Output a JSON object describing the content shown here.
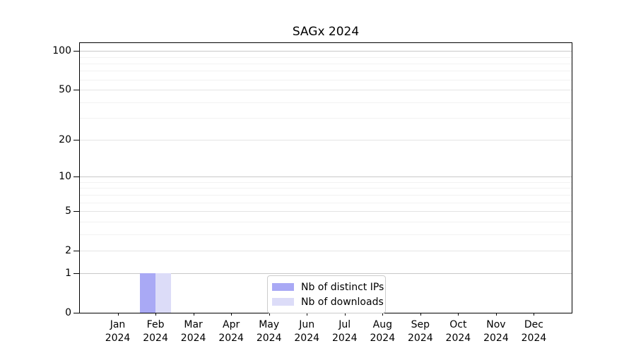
{
  "chart_data": {
    "type": "bar",
    "title": "SAGx 2024",
    "categories": [
      "Jan\n2024",
      "Feb\n2024",
      "Mar\n2024",
      "Apr\n2024",
      "May\n2024",
      "Jun\n2024",
      "Jul\n2024",
      "Aug\n2024",
      "Sep\n2024",
      "Oct\n2024",
      "Nov\n2024",
      "Dec\n2024"
    ],
    "series": [
      {
        "name": "Nb of distinct IPs",
        "color": "#a9a9f5",
        "values": [
          0,
          1,
          0,
          0,
          0,
          0,
          0,
          0,
          0,
          0,
          0,
          0
        ]
      },
      {
        "name": "Nb of downloads",
        "color": "#dcdcf8",
        "values": [
          0,
          1,
          0,
          0,
          0,
          0,
          0,
          0,
          0,
          0,
          0,
          0
        ]
      }
    ],
    "xlabel": "",
    "ylabel": "",
    "yscale": "log1p",
    "ylim": [
      0,
      115
    ],
    "yticks": [
      0,
      1,
      2,
      5,
      10,
      20,
      50,
      100
    ],
    "y_minor_gridlines": [
      3,
      4,
      6,
      7,
      8,
      9,
      30,
      40,
      60,
      70,
      80,
      90
    ],
    "grid": true,
    "legend_position": "lower center",
    "colors": {
      "decade_gridline": "#c9c9c9",
      "major_gridline": "#e4e4e4",
      "minor_gridline": "#f2f2f2",
      "spine": "#000000",
      "legend_border": "#cccccc"
    }
  }
}
